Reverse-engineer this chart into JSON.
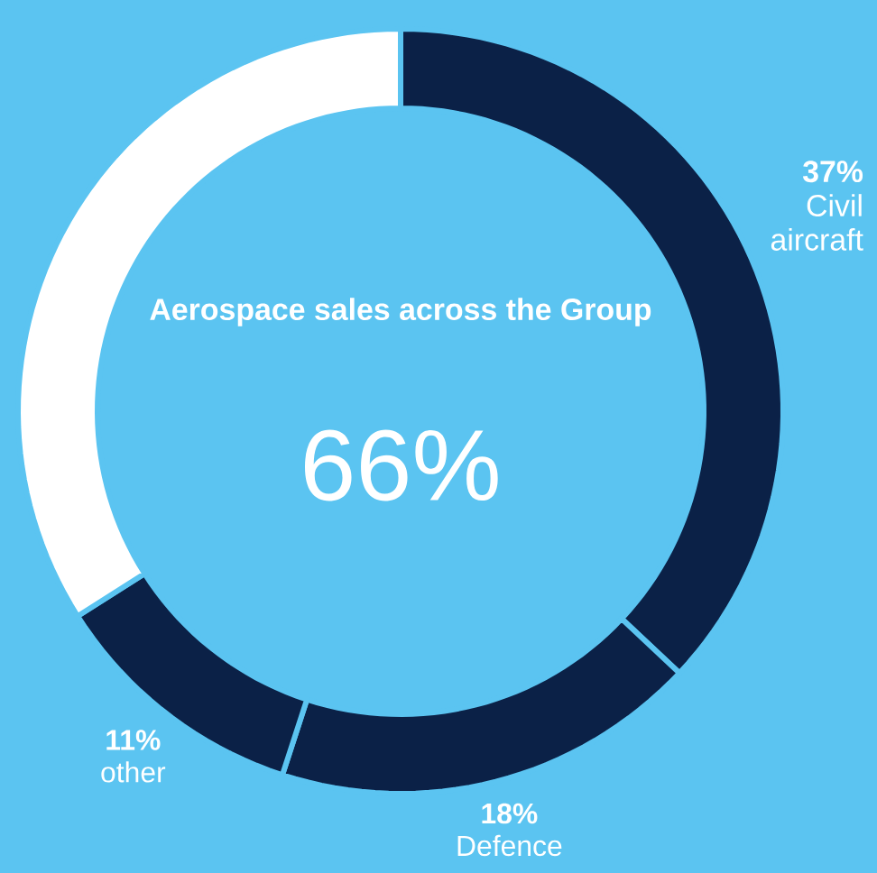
{
  "chart_data": {
    "type": "donut",
    "title": "Aerospace sales across the Group",
    "categories": [
      "Civil aircraft",
      "Defence",
      "other",
      null
    ],
    "values": [
      37,
      18,
      11,
      34
    ],
    "colors": [
      "#0b2147",
      "#0b2147",
      "#0b2147",
      "#ffffff"
    ],
    "value_labels": [
      "37%",
      "18%",
      "11%",
      null
    ],
    "annotations": [
      "66%"
    ]
  }
}
